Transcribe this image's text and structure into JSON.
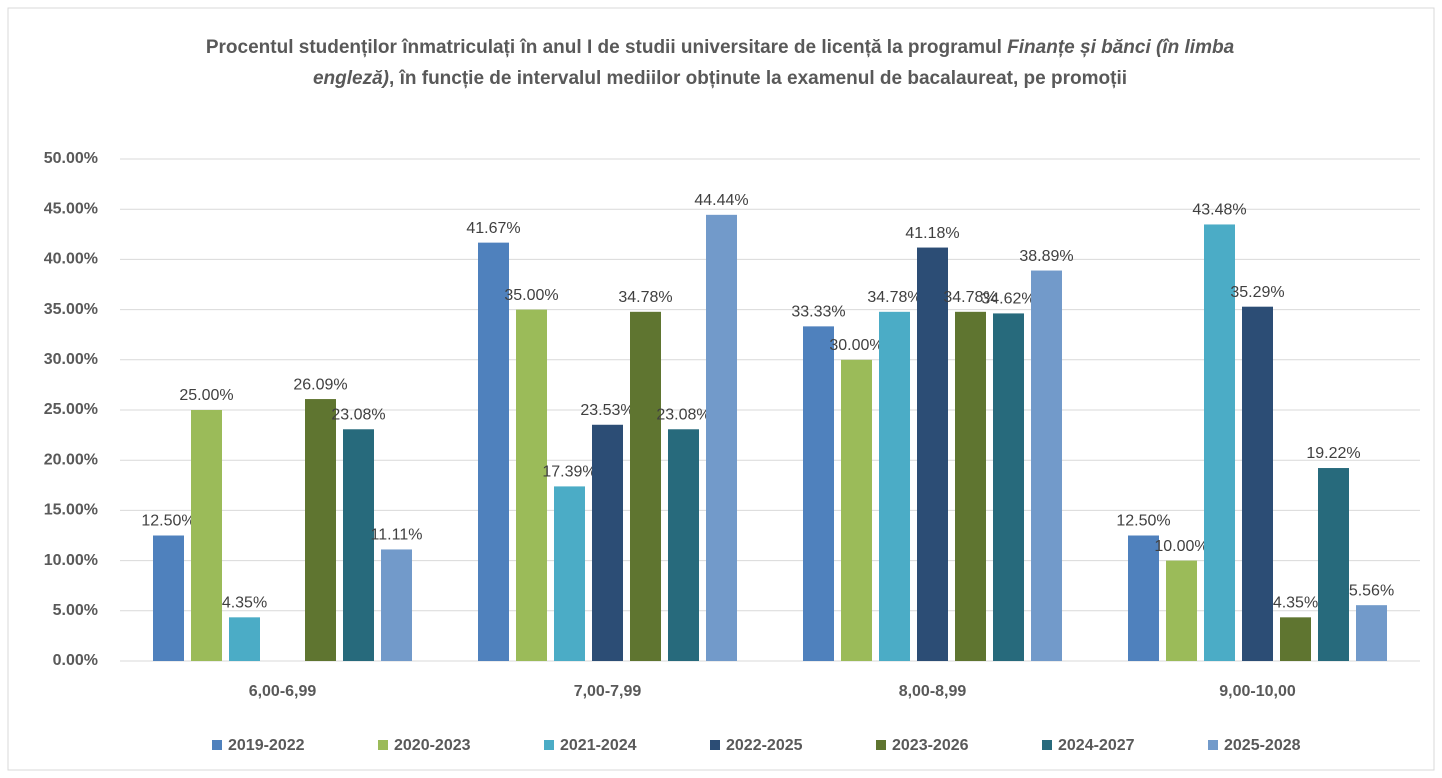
{
  "chart_data": {
    "type": "bar",
    "title_parts": [
      "Procentul studenților înmatriculați în anul I de studii universitare de licență la programul ",
      "Finanțe și bănci (în limba engleză)",
      ", în funcție de intervalul mediilor obținute la examenul de bacalaureat, pe promoții"
    ],
    "categories": [
      "6,00-6,99",
      "7,00-7,99",
      "8,00-8,99",
      "9,00-10,00"
    ],
    "series": [
      {
        "name": "2019-2022",
        "color": "#4f81bd",
        "values": [
          12.5,
          41.67,
          33.33,
          12.5
        ],
        "value_labels": [
          "12.50%",
          "41.67%",
          "33.33%",
          "12.50%"
        ]
      },
      {
        "name": "2020-2023",
        "color": "#9bbb59",
        "values": [
          25,
          35,
          30,
          10
        ],
        "value_labels": [
          "25.00%",
          "35.00%",
          "30.00%",
          "10.00%"
        ]
      },
      {
        "name": "2021-2024",
        "color": "#4bacc6",
        "values": [
          4.35,
          17.39,
          34.78,
          43.48
        ],
        "value_labels": [
          "4.35%",
          "17.39%",
          "34.78%",
          "43.48%"
        ]
      },
      {
        "name": "2022-2025",
        "color": "#2c4d75",
        "values": [
          null,
          23.53,
          41.18,
          35.29
        ],
        "value_labels": [
          null,
          "23.53%",
          "41.18%",
          "35.29%"
        ]
      },
      {
        "name": "2023-2026",
        "color": "#5f7530",
        "values": [
          26.09,
          34.78,
          34.78,
          4.35
        ],
        "value_labels": [
          "26.09%",
          "34.78%",
          "34.78%",
          "4.35%"
        ]
      },
      {
        "name": "2024-2027",
        "color": "#276a7c",
        "values": [
          23.08,
          23.08,
          34.62,
          19.22
        ],
        "value_labels": [
          "23.08%",
          "23.08%",
          "34.62%",
          "19.22%"
        ]
      },
      {
        "name": "2025-2028",
        "color": "#729aca",
        "values": [
          11.11,
          44.44,
          38.89,
          5.56
        ],
        "value_labels": [
          "11.11%",
          "44.44%",
          "38.89%",
          "5.56%"
        ]
      }
    ],
    "ylim": [
      0,
      50
    ],
    "yticks": [
      {
        "value": 0,
        "label": "0.00%"
      },
      {
        "value": 5,
        "label": "5.00%"
      },
      {
        "value": 10,
        "label": "10.00%"
      },
      {
        "value": 15,
        "label": "15.00%"
      },
      {
        "value": 20,
        "label": "20.00%"
      },
      {
        "value": 25,
        "label": "25.00%"
      },
      {
        "value": 30,
        "label": "30.00%"
      },
      {
        "value": 35,
        "label": "35.00%"
      },
      {
        "value": 40,
        "label": "40.00%"
      },
      {
        "value": 45,
        "label": "45.00%"
      },
      {
        "value": 50,
        "label": "50.00%"
      }
    ],
    "grid": true,
    "legend": "bottom"
  }
}
